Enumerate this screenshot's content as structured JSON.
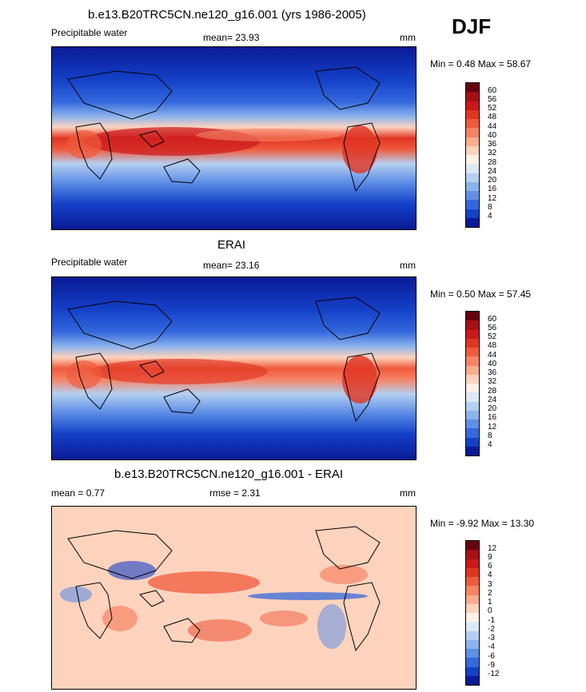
{
  "season": "DJF",
  "panels": [
    {
      "title": "b.e13.B20TRC5CN.ne120_g16.001 (yrs 1986-2005)",
      "left_label": "Precipitable water",
      "center_label": "mean=  23.93",
      "right_label": "mm",
      "minmax": "Min =   0.48 Max =  58.67",
      "colorbar_labels": [
        "60",
        "56",
        "52",
        "48",
        "44",
        "40",
        "36",
        "32",
        "28",
        "24",
        "20",
        "16",
        "12",
        "8",
        "4"
      ],
      "colorbar_colors": [
        "#67000d",
        "#a50f15",
        "#cb181d",
        "#e03523",
        "#ef5a3c",
        "#f78365",
        "#fcac8f",
        "#fdd3bd",
        "#fff1e6",
        "#dbe9f6",
        "#b5cff0",
        "#8bb3ec",
        "#5f8fe6",
        "#3468dc",
        "#1441c8",
        "#0a1a96"
      ]
    },
    {
      "title": "ERAI",
      "left_label": "Precipitable water",
      "center_label": "mean=  23.16",
      "right_label": "mm",
      "minmax": "Min =   0.50 Max =  57.45",
      "colorbar_labels": [
        "60",
        "56",
        "52",
        "48",
        "44",
        "40",
        "36",
        "32",
        "28",
        "24",
        "20",
        "16",
        "12",
        "8",
        "4"
      ],
      "colorbar_colors": [
        "#67000d",
        "#a50f15",
        "#cb181d",
        "#e03523",
        "#ef5a3c",
        "#f78365",
        "#fcac8f",
        "#fdd3bd",
        "#fff1e6",
        "#dbe9f6",
        "#b5cff0",
        "#8bb3ec",
        "#5f8fe6",
        "#3468dc",
        "#1441c8",
        "#0a1a96"
      ]
    },
    {
      "title": "b.e13.B20TRC5CN.ne120_g16.001 - ERAI",
      "left_label": "mean =   0.77",
      "center_label": "rmse =   2.31",
      "right_label": "mm",
      "minmax": "Min =  -9.92 Max =  13.30",
      "colorbar_labels": [
        "12",
        "9",
        "6",
        "4",
        "3",
        "2",
        "1",
        "0",
        "-1",
        "-2",
        "-3",
        "-4",
        "-6",
        "-9",
        "-12"
      ],
      "colorbar_colors": [
        "#67000d",
        "#a50f15",
        "#cb181d",
        "#e03523",
        "#ef5a3c",
        "#f78365",
        "#fcac8f",
        "#fdd3bd",
        "#fff1e6",
        "#dbe9f6",
        "#b5cff0",
        "#8bb3ec",
        "#5f8fe6",
        "#3468dc",
        "#1441c8",
        "#0a1a96"
      ]
    }
  ]
}
